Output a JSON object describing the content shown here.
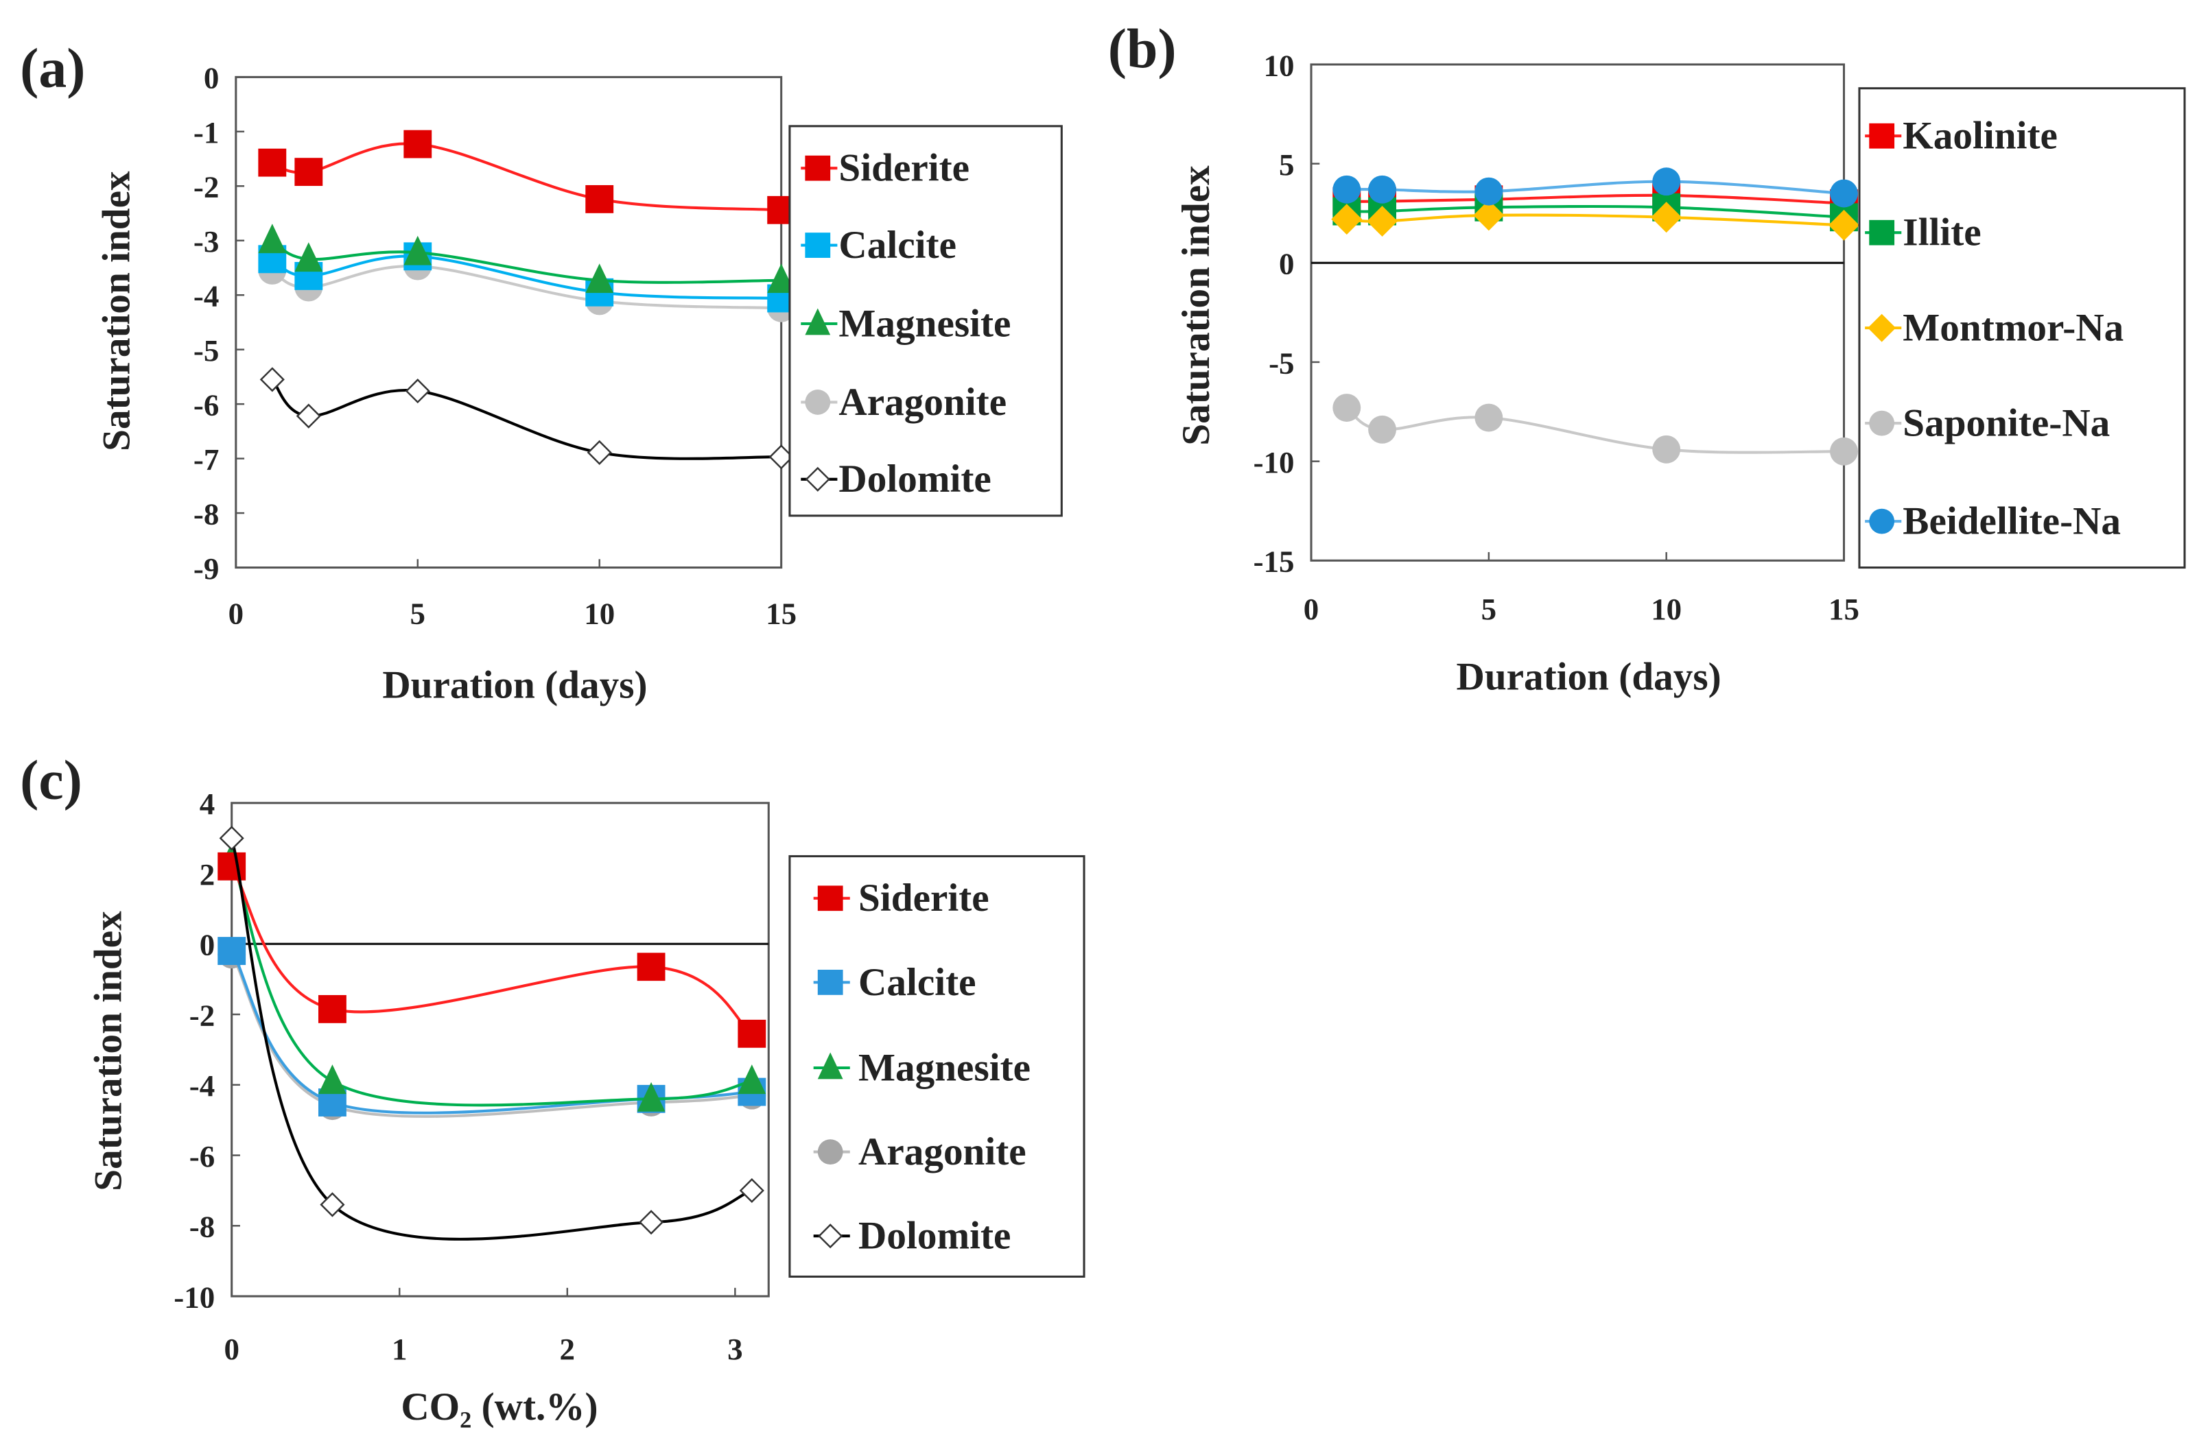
{
  "chart_data": [
    {
      "panel_label": "(a)",
      "type": "line",
      "xlabel": "Duration (days)",
      "ylabel": "Saturation index",
      "xlim": [
        0,
        15
      ],
      "ylim": [
        -9,
        0
      ],
      "xticks": [
        0,
        5,
        10,
        15
      ],
      "yticks": [
        0,
        -1,
        -2,
        -3,
        -4,
        -5,
        -6,
        -7,
        -8,
        -9
      ],
      "zero_line": false,
      "legend_position": "right",
      "x": [
        1,
        2,
        5,
        10,
        15
      ],
      "series": [
        {
          "name": "Dolomite",
          "marker": "diamond-open",
          "color": "#000000",
          "marker_color": "#ffffff",
          "values": [
            -5.55,
            -6.22,
            -5.76,
            -6.89,
            -6.97
          ]
        },
        {
          "name": "Aragonite",
          "marker": "circle",
          "color": "#c8c8c8",
          "marker_color": "#c0c0c0",
          "values": [
            -3.55,
            -3.86,
            -3.47,
            -4.11,
            -4.24
          ]
        },
        {
          "name": "Calcite",
          "marker": "square",
          "color": "#00b0f0",
          "marker_color": "#00b0f0",
          "values": [
            -3.34,
            -3.65,
            -3.29,
            -3.95,
            -4.06
          ]
        },
        {
          "name": "Magnesite",
          "marker": "triangle",
          "color": "#00b050",
          "marker_color": "#1a9e40",
          "values": [
            -3.0,
            -3.34,
            -3.22,
            -3.73,
            -3.73
          ]
        },
        {
          "name": "Siderite",
          "marker": "square",
          "color": "#ff2020",
          "marker_color": "#e00000",
          "values": [
            -1.57,
            -1.74,
            -1.23,
            -2.24,
            -2.44
          ]
        }
      ],
      "legend_order": [
        "Siderite",
        "Calcite",
        "Magnesite",
        "Aragonite",
        "Dolomite"
      ]
    },
    {
      "panel_label": "(b)",
      "type": "line",
      "xlabel": "Duration (days)",
      "ylabel": "Saturation index",
      "xlim": [
        0,
        15
      ],
      "ylim": [
        -15,
        10
      ],
      "xticks": [
        0,
        5,
        10,
        15
      ],
      "yticks": [
        10,
        5,
        0,
        -5,
        -10,
        -15
      ],
      "zero_line": true,
      "legend_position": "right",
      "x": [
        1,
        2,
        5,
        10,
        15
      ],
      "series": [
        {
          "name": "Saponite-Na",
          "marker": "circle",
          "color": "#c8c8c8",
          "marker_color": "#c0c0c0",
          "values": [
            -7.3,
            -8.4,
            -7.8,
            -9.4,
            -9.5
          ]
        },
        {
          "name": "Kaolinite",
          "marker": "square",
          "color": "#ff2020",
          "marker_color": "#ee0000",
          "values": [
            3.1,
            3.1,
            3.2,
            3.4,
            3.0
          ]
        },
        {
          "name": "Illite",
          "marker": "square",
          "color": "#00b050",
          "marker_color": "#00a040",
          "values": [
            2.6,
            2.6,
            2.8,
            2.8,
            2.3
          ]
        },
        {
          "name": "Montmor-Na",
          "marker": "diamond",
          "color": "#ffc000",
          "marker_color": "#ffc000",
          "values": [
            2.2,
            2.1,
            2.4,
            2.3,
            1.9
          ]
        },
        {
          "name": "Beidellite-Na",
          "marker": "circle",
          "color": "#5aaee8",
          "marker_color": "#1f8fd8",
          "values": [
            3.7,
            3.7,
            3.6,
            4.1,
            3.5
          ]
        }
      ],
      "legend_order": [
        "Kaolinite",
        "Illite",
        "Montmor-Na",
        "Saponite-Na",
        "Beidellite-Na"
      ]
    },
    {
      "panel_label": "(c)",
      "type": "line",
      "xlabel": "CO₂ (wt.%)",
      "ylabel": "Saturation index",
      "xlim": [
        0,
        3.2
      ],
      "ylim": [
        -10,
        4
      ],
      "xticks": [
        0,
        1,
        2,
        3
      ],
      "yticks": [
        4,
        2,
        0,
        -2,
        -4,
        -6,
        -8,
        -10
      ],
      "zero_line": true,
      "legend_position": "right",
      "x": [
        0,
        0.6,
        2.5,
        3.1
      ],
      "series": [
        {
          "name": "Aragonite",
          "marker": "circle",
          "color": "#bdbdbd",
          "marker_color": "#a6a6a6",
          "values": [
            -0.3,
            -4.6,
            -4.5,
            -4.3
          ]
        },
        {
          "name": "Calcite",
          "marker": "square",
          "color": "#3a9ee0",
          "marker_color": "#2a96dc",
          "values": [
            -0.2,
            -4.5,
            -4.4,
            -4.2
          ]
        },
        {
          "name": "Magnesite",
          "marker": "triangle",
          "color": "#00b050",
          "marker_color": "#1a9e40",
          "values": [
            2.4,
            -3.9,
            -4.4,
            -3.9
          ]
        },
        {
          "name": "Siderite",
          "marker": "square",
          "color": "#ff2020",
          "marker_color": "#e00000",
          "values": [
            2.2,
            -1.85,
            -0.65,
            -2.55
          ]
        },
        {
          "name": "Dolomite",
          "marker": "diamond-open",
          "color": "#000000",
          "marker_color": "#ffffff",
          "values": [
            3.0,
            -7.4,
            -7.9,
            -7.0
          ]
        }
      ],
      "legend_order": [
        "Siderite",
        "Calcite",
        "Magnesite",
        "Aragonite",
        "Dolomite"
      ]
    }
  ]
}
